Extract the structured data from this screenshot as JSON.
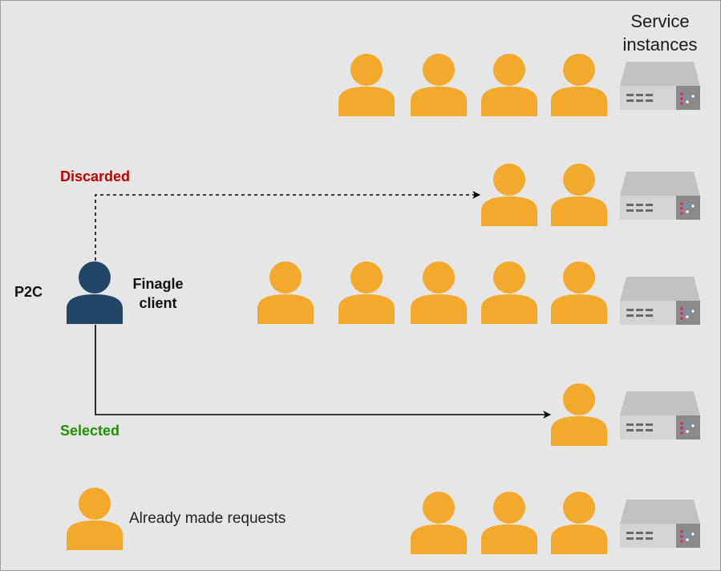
{
  "labels": {
    "service_instances": "Service\ninstances",
    "discarded": "Discarded",
    "selected": "Selected",
    "p2c": "P2C",
    "finagle_client": "Finagle\nclient",
    "already_made_requests": "Already made requests"
  },
  "colors": {
    "background": "#e6e6e6",
    "request_person": "#f2a92c",
    "client_person": "#234566",
    "discarded_text": "#c00000",
    "selected_text": "#1e9100",
    "server_body": "#d4d4d4",
    "server_top": "#c2c2c2",
    "server_panel": "#8a8a8a",
    "arrow": "#000000"
  },
  "rows": [
    {
      "name": "instance-1",
      "requests": 4
    },
    {
      "name": "instance-2",
      "requests": 2
    },
    {
      "name": "instance-3",
      "requests": 5
    },
    {
      "name": "instance-4",
      "requests": 1
    },
    {
      "name": "instance-5",
      "requests": 3
    }
  ],
  "arrows": [
    {
      "name": "discarded-arrow",
      "target_row": 2,
      "style": "dashed"
    },
    {
      "name": "selected-arrow",
      "target_row": 4,
      "style": "solid"
    }
  ],
  "icons": {
    "person": "person-icon",
    "server": "server-icon"
  }
}
